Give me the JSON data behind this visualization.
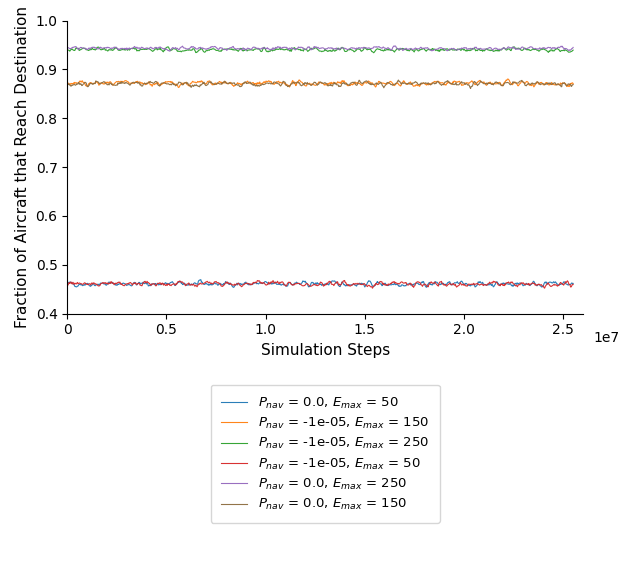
{
  "title": "",
  "xlabel": "Simulation Steps",
  "ylabel": "Fraction of Aircraft that Reach Destination",
  "xlim": [
    0,
    26000000.0
  ],
  "ylim": [
    0.4,
    1.0
  ],
  "yticks": [
    0.4,
    0.5,
    0.6,
    0.7,
    0.8,
    0.9,
    1.0
  ],
  "xticks": [
    0,
    5000000,
    10000000,
    15000000,
    20000000,
    25000000
  ],
  "xtick_labels": [
    "0",
    "0.5",
    "1.0",
    "1.5",
    "2.0",
    "2.5"
  ],
  "n_points": 800,
  "series": [
    {
      "label": "$P_{nav}$ = 0.0, $E_{max}$ = 50",
      "mean": 0.461,
      "noise": 0.006,
      "color": "#1f77b4"
    },
    {
      "label": "$P_{nav}$ = -1e-05, $E_{max}$ = 150",
      "mean": 0.871,
      "noise": 0.006,
      "color": "#ff7f0e"
    },
    {
      "label": "$P_{nav}$ = -1e-05, $E_{max}$ = 250",
      "mean": 0.94,
      "noise": 0.005,
      "color": "#2ca02c"
    },
    {
      "label": "$P_{nav}$ = -1e-05, $E_{max}$ = 50",
      "mean": 0.461,
      "noise": 0.006,
      "color": "#d62728"
    },
    {
      "label": "$P_{nav}$ = 0.0, $E_{max}$ = 250",
      "mean": 0.943,
      "noise": 0.004,
      "color": "#9467bd"
    },
    {
      "label": "$P_{nav}$ = 0.0, $E_{max}$ = 150",
      "mean": 0.871,
      "noise": 0.006,
      "color": "#8c6d3f"
    }
  ],
  "figsize": [
    6.34,
    5.7
  ],
  "dpi": 100
}
